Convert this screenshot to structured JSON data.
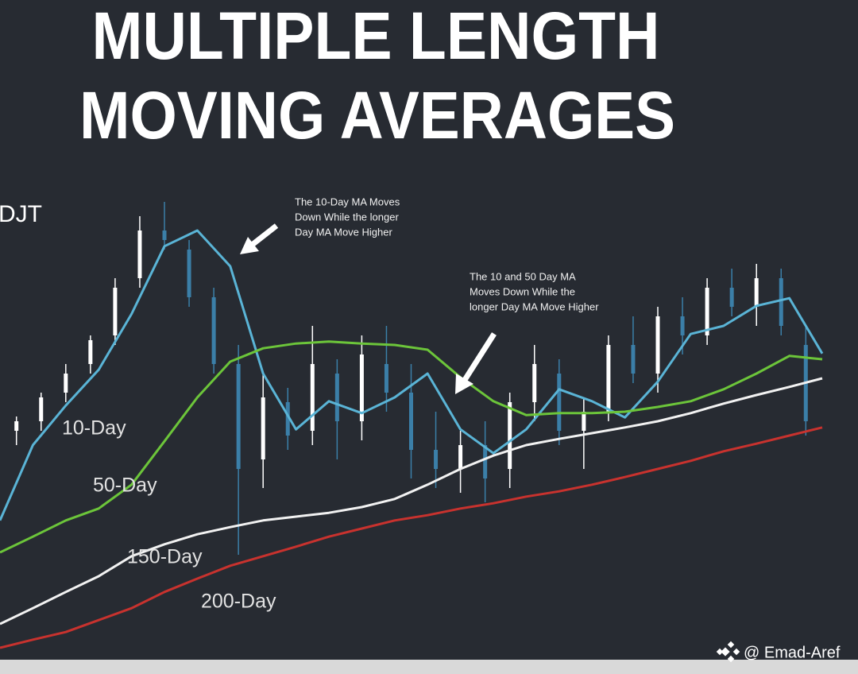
{
  "chart_data": {
    "type": "candlestick",
    "title": [
      "MULTIPLE LENGTH",
      "MOVING AVERAGES"
    ],
    "ticker": "DJT",
    "annotations": [
      [
        "The 10-Day MA Moves",
        "Down While the longer",
        "Day MA Move Higher"
      ],
      [
        "The 10 and 50 Day MA",
        "Moves Down While the",
        "longer Day MA Move Higher"
      ]
    ],
    "watermark": "@ Emad-Aref",
    "xlim": [
      0,
      100
    ],
    "ylim": [
      0,
      100
    ],
    "x": [
      0,
      4,
      8,
      12,
      16,
      20,
      24,
      28,
      32,
      36,
      40,
      44,
      48,
      52,
      56,
      60,
      64,
      68,
      72,
      76,
      80,
      84,
      88,
      92,
      96,
      100
    ],
    "series": [
      {
        "name": "10-Day",
        "color": "#5ab4d6",
        "values": [
          29.2,
          45,
          53.3,
          60.8,
          72.5,
          86.7,
          90,
          82.5,
          60,
          48.3,
          54.2,
          51.7,
          55,
          60,
          48.3,
          43.3,
          48.3,
          56.7,
          54.2,
          50.8,
          58.3,
          68.3,
          70,
          74.2,
          75.8,
          64.2
        ]
      },
      {
        "name": "50-Day",
        "color": "#6cc53a",
        "values": [
          22.5,
          25.8,
          29.2,
          31.7,
          36.7,
          45.8,
          55,
          62.5,
          65.3,
          66.3,
          66.7,
          66.3,
          66,
          65,
          59.2,
          54.2,
          51.3,
          51.7,
          51.7,
          52,
          53,
          54.2,
          56.7,
          60,
          63.7,
          63
        ]
      },
      {
        "name": "150-Day",
        "color": "#f2f2f2",
        "values": [
          7.5,
          10.8,
          14.2,
          17.5,
          21.7,
          24.2,
          26.3,
          27.8,
          29.2,
          30,
          30.8,
          32,
          33.7,
          36.7,
          40,
          42.8,
          45,
          46.3,
          47.5,
          48.7,
          50,
          51.7,
          53.7,
          55.5,
          57.2,
          59
        ]
      },
      {
        "name": "200-Day",
        "color": "#c8322e",
        "values": [
          2.5,
          4.2,
          5.8,
          8.3,
          10.8,
          14.2,
          17,
          19.7,
          21.7,
          23.7,
          25.8,
          27.5,
          29.2,
          30.3,
          31.7,
          32.8,
          34.2,
          35.3,
          36.7,
          38.3,
          40,
          41.7,
          43.7,
          45.3,
          47,
          48.7
        ]
      }
    ],
    "candles": {
      "up_color": "#ffffff",
      "down_color": "#3b7fa8",
      "x": [
        2,
        5,
        8,
        11,
        14,
        17,
        20,
        23,
        26,
        29,
        32,
        35,
        38,
        41,
        44,
        47,
        50,
        53,
        56,
        59,
        62,
        65,
        68,
        71,
        74,
        77,
        80,
        83,
        86,
        89,
        92,
        95,
        98
      ],
      "open": [
        48,
        50,
        56,
        62,
        68,
        80,
        90,
        86,
        76,
        62,
        42,
        54,
        48,
        60,
        50,
        62,
        56,
        44,
        40,
        45,
        40,
        54,
        60,
        48,
        52,
        66,
        60,
        72,
        68,
        78,
        74,
        80,
        66
      ],
      "high": [
        51,
        56,
        62,
        68,
        80,
        93,
        96,
        88,
        78,
        66,
        60,
        57,
        70,
        63,
        68,
        70,
        62,
        52,
        48,
        50,
        56,
        66,
        63,
        55,
        68,
        72,
        74,
        76,
        80,
        82,
        83,
        82,
        70
      ],
      "low": [
        45,
        48,
        54,
        60,
        66,
        78,
        86,
        74,
        60,
        22,
        36,
        44,
        45,
        42,
        46,
        52,
        38,
        36,
        35,
        33,
        36,
        50,
        45,
        40,
        50,
        58,
        56,
        64,
        66,
        72,
        70,
        68,
        47
      ],
      "close": [
        50,
        55,
        60,
        67,
        78,
        90,
        88,
        76,
        62,
        40,
        55,
        47,
        62,
        50,
        64,
        56,
        44,
        40,
        45,
        38,
        54,
        62,
        48,
        52,
        66,
        60,
        72,
        68,
        78,
        74,
        80,
        70,
        50
      ]
    }
  }
}
